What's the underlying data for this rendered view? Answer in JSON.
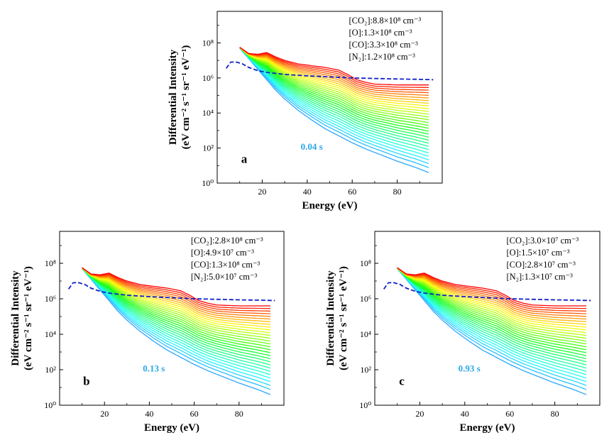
{
  "figure": {
    "theme": {
      "curve_colormap": "rainbow",
      "curve_color_late": "#ff0000",
      "curve_color_early": "#3aa5ff",
      "dashed_color": "#1020c8",
      "time_label_color": "#2aa7e8"
    },
    "chart_data": [
      {
        "id": "a",
        "type": "line",
        "panel_label": "a",
        "time_label": "0.04 s",
        "xlabel": "Energy (eV)",
        "ylabel_line1": "Differential Intensity",
        "ylabel_line2": "(eV cm⁻² s⁻¹ sr⁻¹ eV⁻¹)",
        "x_ticks": [
          "20",
          "40",
          "60",
          "80"
        ],
        "y_ticks": [
          "10⁰",
          "10²",
          "10⁴",
          "10⁶",
          "10⁸"
        ],
        "xlim": [
          0,
          100
        ],
        "ylim_log10": [
          0,
          9.8
        ],
        "yscale": "log",
        "annotations": [
          "[CO₂]:8.8×10⁸ cm⁻³",
          "[O]:1.3×10⁸ cm⁻³",
          "[CO]:3.3×10⁸ cm⁻³",
          "[N₂]:1.2×10⁸ cm⁻³"
        ],
        "curve_count": 30,
        "upper_curve_log10": [
          [
            10,
            7.75
          ],
          [
            14,
            7.4
          ],
          [
            18,
            7.35
          ],
          [
            22,
            7.45
          ],
          [
            26,
            7.2
          ],
          [
            30,
            7.0
          ],
          [
            36,
            6.8
          ],
          [
            42,
            6.7
          ],
          [
            48,
            6.6
          ],
          [
            54,
            6.45
          ],
          [
            58,
            6.2
          ],
          [
            62,
            5.9
          ],
          [
            66,
            5.75
          ],
          [
            70,
            5.65
          ],
          [
            80,
            5.6
          ],
          [
            94,
            5.6
          ]
        ],
        "lower_curve_log10": [
          [
            10,
            7.7
          ],
          [
            14,
            7.1
          ],
          [
            18,
            6.5
          ],
          [
            22,
            5.9
          ],
          [
            26,
            5.3
          ],
          [
            30,
            4.8
          ],
          [
            36,
            4.15
          ],
          [
            42,
            3.6
          ],
          [
            48,
            3.1
          ],
          [
            54,
            2.7
          ],
          [
            60,
            2.3
          ],
          [
            66,
            1.95
          ],
          [
            72,
            1.65
          ],
          [
            80,
            1.25
          ],
          [
            88,
            0.9
          ],
          [
            94,
            0.6
          ]
        ],
        "dashed_curve_log10": [
          [
            4,
            6.55
          ],
          [
            6,
            6.9
          ],
          [
            8,
            6.92
          ],
          [
            11,
            6.82
          ],
          [
            14,
            6.6
          ],
          [
            18,
            6.42
          ],
          [
            22,
            6.32
          ],
          [
            30,
            6.2
          ],
          [
            40,
            6.12
          ],
          [
            50,
            6.06
          ],
          [
            60,
            6.0
          ],
          [
            70,
            5.97
          ],
          [
            80,
            5.94
          ],
          [
            90,
            5.92
          ],
          [
            96,
            5.9
          ]
        ]
      },
      {
        "id": "b",
        "type": "line",
        "panel_label": "b",
        "time_label": "0.13 s",
        "xlabel": "Energy (eV)",
        "ylabel_line1": "Differential Intensity",
        "ylabel_line2": "(eV cm⁻² s⁻¹ sr⁻¹ eV⁻¹)",
        "x_ticks": [
          "20",
          "40",
          "60",
          "80"
        ],
        "y_ticks": [
          "10⁰",
          "10²",
          "10⁴",
          "10⁶",
          "10⁸"
        ],
        "xlim": [
          0,
          100
        ],
        "ylim_log10": [
          0,
          9.8
        ],
        "yscale": "log",
        "annotations": [
          "[CO₂]:2.8×10⁸ cm⁻³",
          "[O]:4.9×10⁷ cm⁻³",
          "[CO]:1.3×10⁸ cm⁻³",
          "[N₂]:5.0×10⁷ cm⁻³"
        ],
        "curve_count": 30,
        "upper_curve_log10": [
          [
            10,
            7.75
          ],
          [
            14,
            7.4
          ],
          [
            18,
            7.35
          ],
          [
            22,
            7.45
          ],
          [
            26,
            7.2
          ],
          [
            30,
            7.0
          ],
          [
            36,
            6.8
          ],
          [
            42,
            6.7
          ],
          [
            48,
            6.6
          ],
          [
            54,
            6.45
          ],
          [
            58,
            6.2
          ],
          [
            62,
            5.9
          ],
          [
            66,
            5.75
          ],
          [
            70,
            5.65
          ],
          [
            80,
            5.6
          ],
          [
            94,
            5.6
          ]
        ],
        "lower_curve_log10": [
          [
            10,
            7.7
          ],
          [
            14,
            7.1
          ],
          [
            18,
            6.5
          ],
          [
            22,
            5.9
          ],
          [
            26,
            5.3
          ],
          [
            30,
            4.8
          ],
          [
            36,
            4.15
          ],
          [
            42,
            3.6
          ],
          [
            48,
            3.1
          ],
          [
            54,
            2.7
          ],
          [
            60,
            2.3
          ],
          [
            66,
            1.95
          ],
          [
            72,
            1.65
          ],
          [
            80,
            1.25
          ],
          [
            88,
            0.9
          ],
          [
            94,
            0.6
          ]
        ],
        "dashed_curve_log10": [
          [
            4,
            6.55
          ],
          [
            6,
            6.9
          ],
          [
            8,
            6.92
          ],
          [
            11,
            6.82
          ],
          [
            14,
            6.6
          ],
          [
            18,
            6.42
          ],
          [
            22,
            6.32
          ],
          [
            30,
            6.2
          ],
          [
            40,
            6.12
          ],
          [
            50,
            6.06
          ],
          [
            60,
            6.0
          ],
          [
            70,
            5.97
          ],
          [
            80,
            5.94
          ],
          [
            90,
            5.92
          ],
          [
            96,
            5.9
          ]
        ]
      },
      {
        "id": "c",
        "type": "line",
        "panel_label": "c",
        "time_label": "0.93 s",
        "xlabel": "Energy (eV)",
        "ylabel_line1": "Differential Intensity",
        "ylabel_line2": "(eV cm⁻² s⁻¹ sr⁻¹ eV⁻¹)",
        "x_ticks": [
          "20",
          "40",
          "60",
          "80"
        ],
        "y_ticks": [
          "10⁰",
          "10²",
          "10⁴",
          "10⁶",
          "10⁸"
        ],
        "xlim": [
          0,
          100
        ],
        "ylim_log10": [
          0,
          9.8
        ],
        "yscale": "log",
        "annotations": [
          "[CO₂]:3.0×10⁷ cm⁻³",
          "[O]:1.5×10⁷ cm⁻³",
          "[CO]:2.8×10⁷ cm⁻³",
          "[N₂]:1.3×10⁷ cm⁻³"
        ],
        "curve_count": 30,
        "upper_curve_log10": [
          [
            10,
            7.75
          ],
          [
            14,
            7.4
          ],
          [
            18,
            7.35
          ],
          [
            22,
            7.45
          ],
          [
            26,
            7.2
          ],
          [
            30,
            7.0
          ],
          [
            36,
            6.8
          ],
          [
            42,
            6.7
          ],
          [
            48,
            6.6
          ],
          [
            54,
            6.45
          ],
          [
            58,
            6.2
          ],
          [
            62,
            5.9
          ],
          [
            66,
            5.75
          ],
          [
            70,
            5.65
          ],
          [
            80,
            5.6
          ],
          [
            94,
            5.6
          ]
        ],
        "lower_curve_log10": [
          [
            10,
            7.7
          ],
          [
            14,
            7.1
          ],
          [
            18,
            6.5
          ],
          [
            22,
            5.9
          ],
          [
            26,
            5.3
          ],
          [
            30,
            4.8
          ],
          [
            36,
            4.15
          ],
          [
            42,
            3.6
          ],
          [
            48,
            3.1
          ],
          [
            54,
            2.7
          ],
          [
            60,
            2.3
          ],
          [
            66,
            1.95
          ],
          [
            72,
            1.65
          ],
          [
            80,
            1.25
          ],
          [
            88,
            0.9
          ],
          [
            94,
            0.6
          ]
        ],
        "dashed_curve_log10": [
          [
            4,
            6.55
          ],
          [
            6,
            6.9
          ],
          [
            8,
            6.92
          ],
          [
            11,
            6.82
          ],
          [
            14,
            6.6
          ],
          [
            18,
            6.42
          ],
          [
            22,
            6.32
          ],
          [
            30,
            6.2
          ],
          [
            40,
            6.12
          ],
          [
            50,
            6.06
          ],
          [
            60,
            6.0
          ],
          [
            70,
            5.97
          ],
          [
            80,
            5.94
          ],
          [
            90,
            5.92
          ],
          [
            96,
            5.9
          ]
        ]
      }
    ]
  }
}
